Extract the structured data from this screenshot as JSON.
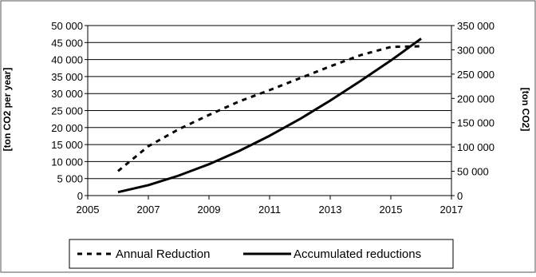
{
  "chart_data": {
    "type": "line",
    "title": "",
    "xlabel": "",
    "ylabel": "[ton CO2 per year]",
    "y2label": "[ton CO2]",
    "xlim": [
      2005,
      2017
    ],
    "ylim": [
      0,
      50000
    ],
    "y2lim": [
      0,
      350000
    ],
    "xticks": [
      "2005",
      "2007",
      "2009",
      "2011",
      "2013",
      "2015",
      "2017"
    ],
    "yticks": [
      "0",
      "5 000",
      "10 000",
      "15 000",
      "20 000",
      "25 000",
      "30 000",
      "35 000",
      "40 000",
      "45 000",
      "50 000"
    ],
    "y2ticks": [
      "0",
      "50 000",
      "100 000",
      "150 000",
      "200 000",
      "250 000",
      "300 000",
      "350 000"
    ],
    "grid": "horizontal",
    "legend_position": "bottom",
    "series": [
      {
        "name": "Annual Reduction",
        "axis": "left",
        "style": "dashed",
        "color": "#000000",
        "x": [
          2006,
          2007,
          2008,
          2009,
          2010,
          2011,
          2012,
          2013,
          2014,
          2015,
          2016
        ],
        "y": [
          7200,
          14500,
          19500,
          23700,
          27700,
          31000,
          34500,
          38000,
          41300,
          43700,
          43900
        ]
      },
      {
        "name": "Accumulated reductions",
        "axis": "right",
        "style": "solid",
        "color": "#000000",
        "x": [
          2006,
          2007,
          2008,
          2009,
          2010,
          2011,
          2012,
          2013,
          2014,
          2015,
          2016
        ],
        "y": [
          7000,
          21500,
          41000,
          64500,
          92000,
          123000,
          157500,
          195500,
          236000,
          278000,
          323000
        ]
      }
    ]
  }
}
